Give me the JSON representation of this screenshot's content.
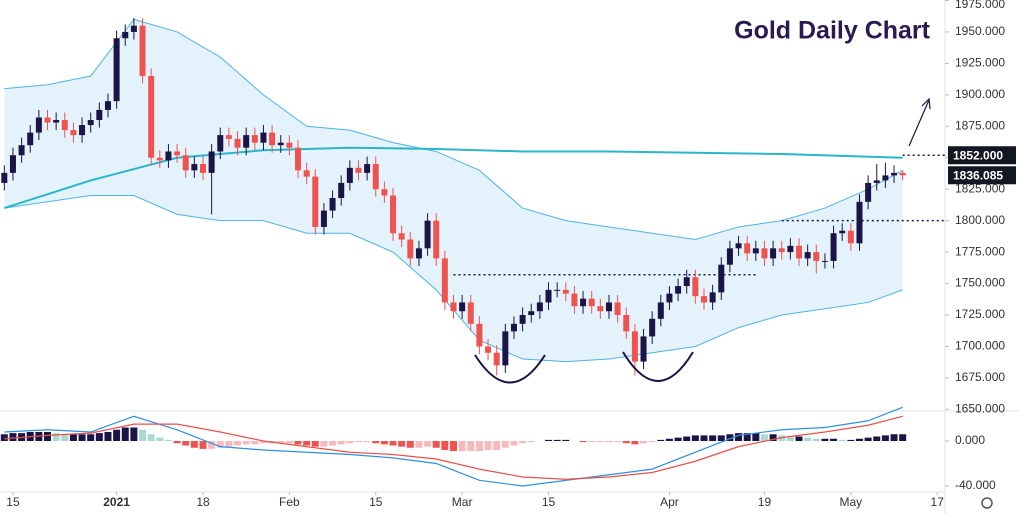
{
  "chart_data": [
    {
      "type": "candlestick",
      "title": "Gold Daily Chart",
      "up_color": "#1b1447",
      "down_color": "#ef5350",
      "xlim": [
        -0.5,
        108.9
      ],
      "ylim": [
        1649.5,
        1975.4
      ],
      "xticks": [
        {
          "value": 1,
          "label": "15"
        },
        {
          "value": 13,
          "label": "2021"
        },
        {
          "value": 23,
          "label": "18"
        },
        {
          "value": 33,
          "label": "Feb"
        },
        {
          "value": 43,
          "label": "15"
        },
        {
          "value": 53,
          "label": "Mar"
        },
        {
          "value": 63,
          "label": "15"
        },
        {
          "value": 77,
          "label": "Apr"
        },
        {
          "value": 88,
          "label": "19"
        },
        {
          "value": 98,
          "label": "May"
        },
        {
          "value": 108,
          "label": "17"
        }
      ],
      "yticks": [
        {
          "value": 1975,
          "label": "1975.000"
        },
        {
          "value": 1950,
          "label": "1950.000"
        },
        {
          "value": 1925,
          "label": "1925.000"
        },
        {
          "value": 1900,
          "label": "1900.000"
        },
        {
          "value": 1875,
          "label": "1875.000"
        },
        {
          "value": 1850,
          "label": "1850.000"
        },
        {
          "value": 1825,
          "label": "1825.000"
        },
        {
          "value": 1800,
          "label": "1800.000"
        },
        {
          "value": 1775,
          "label": "1775.000"
        },
        {
          "value": 1750,
          "label": "1750.000"
        },
        {
          "value": 1725,
          "label": "1725.000"
        },
        {
          "value": 1700,
          "label": "1700.000"
        },
        {
          "value": 1675,
          "label": "1675.000"
        },
        {
          "value": 1650,
          "label": "1650.000"
        }
      ],
      "open": [
        1830,
        1838,
        1852,
        1860,
        1870,
        1882,
        1878,
        1880,
        1872,
        1868,
        1876,
        1880,
        1888,
        1895,
        1945,
        1950,
        1955,
        1915,
        1850,
        1848,
        1855,
        1852,
        1840,
        1845,
        1838,
        1855,
        1868,
        1865,
        1858,
        1868,
        1862,
        1870,
        1860,
        1862,
        1858,
        1840,
        1835,
        1795,
        1808,
        1818,
        1830,
        1842,
        1838,
        1845,
        1825,
        1820,
        1790,
        1785,
        1770,
        1778,
        1800,
        1770,
        1735,
        1728,
        1735,
        1718,
        1700,
        1695,
        1685,
        1712,
        1718,
        1725,
        1728,
        1735,
        1745,
        1745,
        1742,
        1732,
        1738,
        1732,
        1728,
        1735,
        1725,
        1712,
        1688,
        1708,
        1722,
        1735,
        1742,
        1748,
        1755,
        1740,
        1735,
        1743,
        1765,
        1778,
        1782,
        1774,
        1778,
        1770,
        1778,
        1775,
        1780,
        1770,
        1775,
        1768,
        1768,
        1790,
        1792,
        1782,
        1815,
        1830,
        1832,
        1836,
        1838
      ],
      "high": [
        1844,
        1858,
        1866,
        1876,
        1888,
        1888,
        1886,
        1886,
        1878,
        1882,
        1886,
        1894,
        1901,
        1951,
        1956,
        1961,
        1961,
        1921,
        1856,
        1861,
        1861,
        1858,
        1851,
        1851,
        1861,
        1874,
        1874,
        1871,
        1874,
        1874,
        1876,
        1876,
        1868,
        1868,
        1864,
        1846,
        1841,
        1814,
        1824,
        1836,
        1848,
        1848,
        1851,
        1851,
        1831,
        1826,
        1796,
        1791,
        1784,
        1806,
        1806,
        1776,
        1741,
        1741,
        1741,
        1724,
        1706,
        1701,
        1718,
        1724,
        1731,
        1734,
        1741,
        1751,
        1751,
        1751,
        1748,
        1744,
        1744,
        1738,
        1741,
        1741,
        1731,
        1718,
        1714,
        1728,
        1741,
        1748,
        1754,
        1761,
        1761,
        1746,
        1749,
        1771,
        1784,
        1788,
        1788,
        1784,
        1784,
        1784,
        1784,
        1786,
        1786,
        1781,
        1781,
        1774,
        1796,
        1798,
        1798,
        1821,
        1836,
        1845,
        1846,
        1844,
        1840
      ],
      "low": [
        1824,
        1832,
        1846,
        1854,
        1864,
        1872,
        1872,
        1866,
        1862,
        1862,
        1870,
        1874,
        1882,
        1889,
        1939,
        1944,
        1909,
        1844,
        1842,
        1842,
        1846,
        1834,
        1834,
        1832,
        1805,
        1849,
        1859,
        1852,
        1852,
        1856,
        1856,
        1854,
        1854,
        1852,
        1834,
        1829,
        1789,
        1789,
        1802,
        1812,
        1824,
        1832,
        1832,
        1819,
        1814,
        1784,
        1779,
        1764,
        1764,
        1772,
        1764,
        1729,
        1722,
        1722,
        1712,
        1694,
        1689,
        1677,
        1679,
        1706,
        1712,
        1719,
        1722,
        1729,
        1739,
        1736,
        1726,
        1726,
        1726,
        1722,
        1722,
        1719,
        1706,
        1677,
        1682,
        1702,
        1716,
        1729,
        1736,
        1742,
        1734,
        1729,
        1729,
        1737,
        1759,
        1772,
        1768,
        1768,
        1764,
        1764,
        1769,
        1769,
        1764,
        1764,
        1758,
        1762,
        1762,
        1784,
        1776,
        1776,
        1809,
        1824,
        1826,
        1830,
        1832
      ],
      "close": [
        1838,
        1852,
        1860,
        1870,
        1882,
        1878,
        1880,
        1872,
        1868,
        1876,
        1880,
        1888,
        1895,
        1945,
        1950,
        1955,
        1915,
        1850,
        1848,
        1855,
        1852,
        1840,
        1845,
        1838,
        1855,
        1868,
        1865,
        1858,
        1868,
        1862,
        1870,
        1860,
        1862,
        1858,
        1840,
        1835,
        1795,
        1808,
        1818,
        1830,
        1842,
        1838,
        1845,
        1825,
        1820,
        1790,
        1785,
        1770,
        1778,
        1800,
        1770,
        1735,
        1728,
        1735,
        1718,
        1700,
        1695,
        1685,
        1712,
        1718,
        1725,
        1728,
        1735,
        1745,
        1745,
        1742,
        1732,
        1738,
        1732,
        1728,
        1735,
        1725,
        1712,
        1688,
        1708,
        1722,
        1735,
        1742,
        1748,
        1755,
        1740,
        1735,
        1743,
        1765,
        1778,
        1782,
        1774,
        1778,
        1770,
        1778,
        1775,
        1780,
        1770,
        1775,
        1768,
        1768,
        1790,
        1792,
        1782,
        1815,
        1830,
        1832,
        1836,
        1838,
        1836.085
      ],
      "band": {
        "fill": "#e4f2fc",
        "color": "#4fb3e6",
        "x": [
          0,
          5,
          10,
          15,
          20,
          25,
          30,
          35,
          40,
          45,
          50,
          55,
          60,
          65,
          70,
          75,
          80,
          85,
          90,
          95,
          100,
          104
        ],
        "upper": [
          1905,
          1908,
          1915,
          1960,
          1950,
          1930,
          1900,
          1875,
          1872,
          1862,
          1855,
          1840,
          1810,
          1800,
          1795,
          1790,
          1785,
          1795,
          1800,
          1810,
          1825,
          1840
        ],
        "lower": [
          1810,
          1815,
          1820,
          1820,
          1805,
          1800,
          1800,
          1790,
          1790,
          1775,
          1745,
          1705,
          1690,
          1688,
          1690,
          1695,
          1700,
          1715,
          1725,
          1730,
          1735,
          1745
        ]
      },
      "moving_average": {
        "color": "#29b6c8",
        "x": [
          0,
          10,
          20,
          30,
          40,
          50,
          60,
          70,
          80,
          90,
          104
        ],
        "values": [
          1810,
          1832,
          1850,
          1856,
          1858,
          1857,
          1855,
          1855,
          1854,
          1853,
          1850
        ]
      },
      "levels": [
        {
          "value": 1757,
          "x": [
            52,
            87
          ]
        },
        {
          "value": 1800,
          "x": [
            90,
            108.9
          ]
        },
        {
          "value": 1852,
          "x": [
            104,
            108.9
          ]
        }
      ],
      "price_tags": [
        {
          "value": 1852,
          "label": "1852.000"
        },
        {
          "value": 1836.085,
          "label": "1836.085"
        }
      ]
    },
    {
      "type": "macd",
      "xlim": [
        -0.5,
        108.9
      ],
      "ylim": [
        -50.7,
        25.8
      ],
      "yticks": [
        {
          "value": 0,
          "label": "0.000"
        },
        {
          "value": -40,
          "label": "-40.000"
        }
      ],
      "histogram_colors": [
        "#1b1447",
        "#a9d9d2",
        "#f6b9bd",
        "#ef5350"
      ],
      "histogram": [
        6,
        7,
        7,
        8,
        8,
        8,
        7,
        6,
        6,
        6,
        6,
        7,
        8,
        10,
        12,
        12,
        10,
        6,
        3,
        1,
        -2,
        -4,
        -6,
        -7,
        -7,
        -6,
        -5,
        -4,
        -3,
        -3,
        -2,
        -2,
        -2,
        -2,
        -3,
        -4,
        -5,
        -5,
        -4,
        -3,
        -2,
        -1,
        -1,
        -2,
        -3,
        -4,
        -5,
        -6,
        -6,
        -5,
        -6,
        -8,
        -9,
        -9,
        -9,
        -9,
        -8,
        -8,
        -6,
        -4,
        -2,
        -1,
        0,
        1,
        1,
        1,
        0,
        -1,
        -1,
        -1,
        -1,
        -1,
        -2,
        -3,
        -2,
        -1,
        1,
        2,
        3,
        4,
        5,
        5,
        5,
        5,
        6,
        7,
        7,
        7,
        6,
        6,
        5,
        4,
        4,
        3,
        2,
        2,
        2,
        1,
        1,
        2,
        3,
        4,
        5,
        6,
        6
      ],
      "series": [
        {
          "color": "#2f8fe0",
          "x": [
            0,
            5,
            10,
            15,
            20,
            25,
            30,
            35,
            40,
            45,
            50,
            55,
            60,
            65,
            70,
            75,
            80,
            85,
            90,
            95,
            100,
            104
          ],
          "values": [
            8,
            10,
            8,
            22,
            10,
            -5,
            -8,
            -10,
            -12,
            -15,
            -20,
            -35,
            -40,
            -35,
            -30,
            -25,
            -10,
            5,
            10,
            12,
            18,
            30
          ]
        },
        {
          "color": "#e8524a",
          "x": [
            0,
            5,
            10,
            15,
            20,
            25,
            30,
            35,
            40,
            45,
            50,
            55,
            60,
            65,
            70,
            75,
            80,
            85,
            90,
            95,
            100,
            104
          ],
          "values": [
            2,
            5,
            7,
            15,
            15,
            8,
            0,
            -5,
            -10,
            -12,
            -16,
            -25,
            -32,
            -34,
            -32,
            -28,
            -18,
            -5,
            3,
            8,
            14,
            22
          ]
        }
      ]
    }
  ]
}
